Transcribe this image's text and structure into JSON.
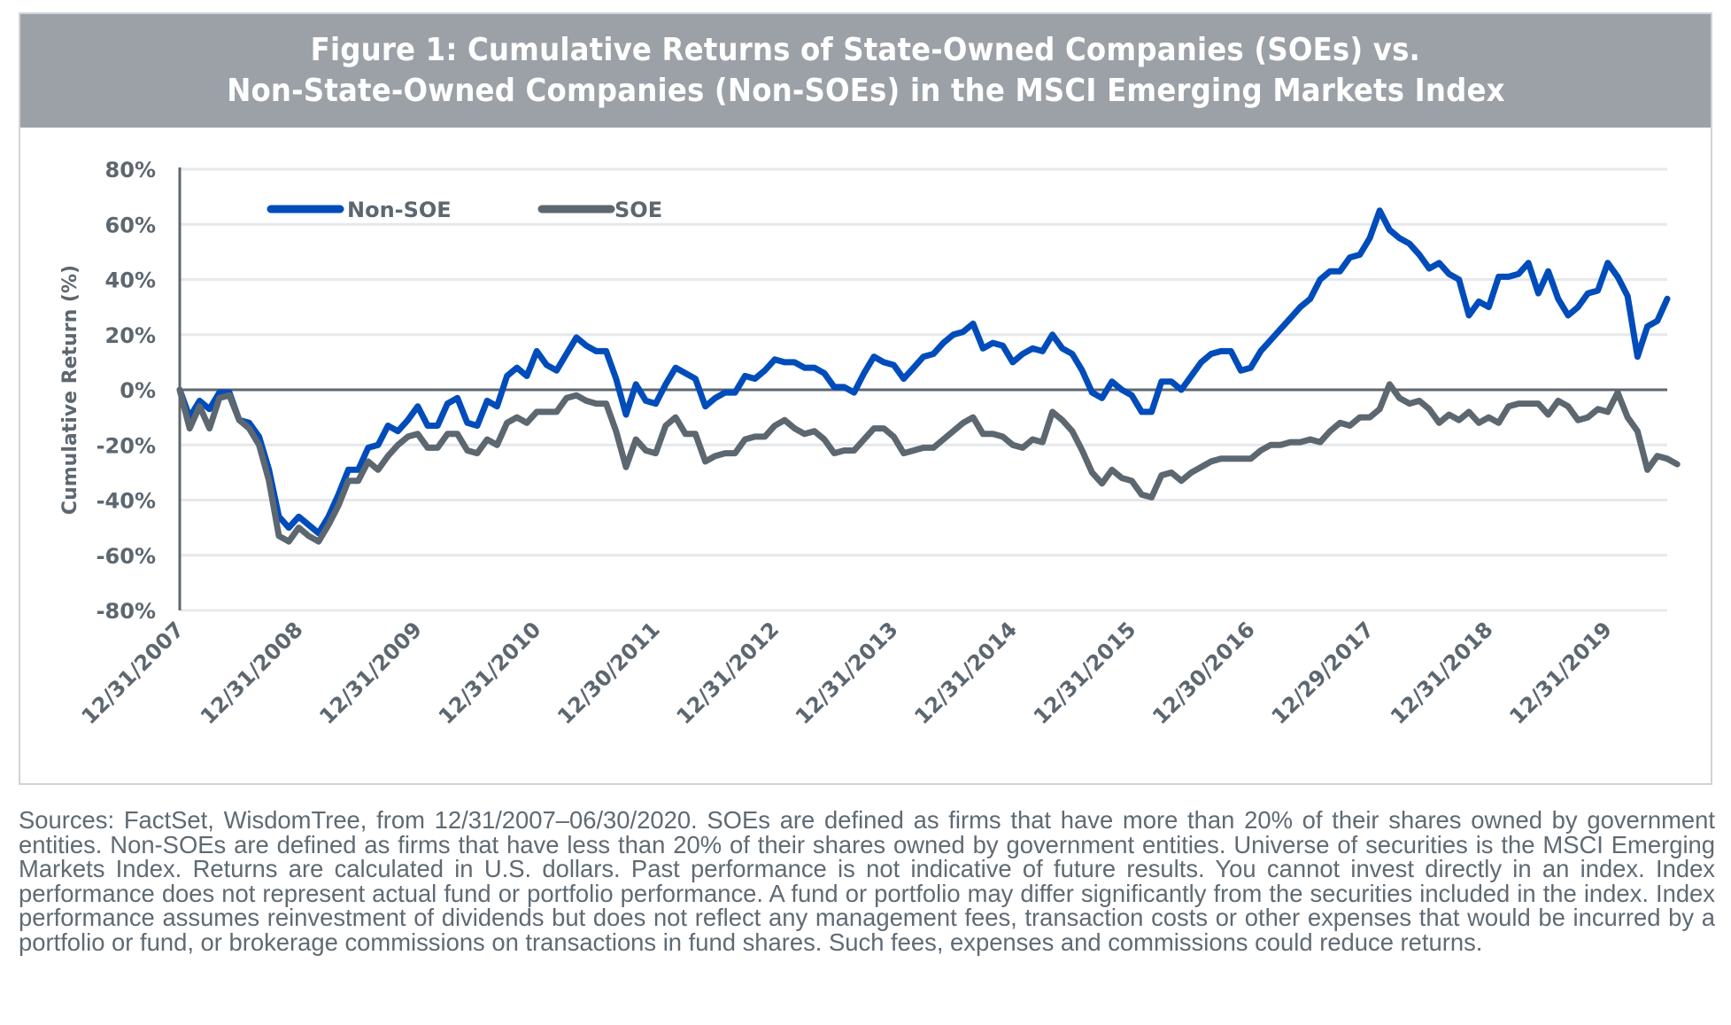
{
  "title": {
    "line1": "Figure 1: Cumulative Returns of State-Owned Companies (SOEs) vs.",
    "line2": "Non-State-Owned Companies (Non-SOEs) in the MSCI Emerging Markets Index"
  },
  "footnote": "Sources: FactSet, WisdomTree, from 12/31/2007–06/30/2020. SOEs are defined as firms that have more than 20% of their shares owned by government entities. Non-SOEs are defined as firms that have less than 20% of their shares owned by government entities. Universe of securities is the MSCI Emerging Markets Index. Returns are calculated in U.S. dollars. Past performance is not indicative of future results. You cannot invest directly in an index. Index performance does not represent actual fund or portfolio performance. A fund or portfolio may differ significantly from the securities included in the index. Index performance assumes reinvestment of dividends but does not reflect any management fees, transaction costs or other expenses that would be incurred by a portfolio or fund, or brokerage commissions on transactions in fund shares. Such fees, expenses and commissions could reduce returns.",
  "colors": {
    "non_soe": "#004cbb",
    "soe": "#5c6770",
    "title_band": "#9ba1a7",
    "grid": "#e6e8eb",
    "axis": "#5d6770"
  },
  "chart_data": {
    "type": "line",
    "title": "Figure 1: Cumulative Returns of State-Owned Companies (SOEs) vs. Non-State-Owned Companies (Non-SOEs) in the MSCI Emerging Markets Index",
    "xlabel": "",
    "ylabel": "Cumulative Return (%)",
    "ylim": [
      -80,
      80
    ],
    "yticks": [
      80,
      60,
      40,
      20,
      0,
      -20,
      -40,
      -60,
      -80
    ],
    "ytick_labels": [
      "80%",
      "60%",
      "40%",
      "20%",
      "0%",
      "-20%",
      "-40%",
      "-60%",
      "-80%"
    ],
    "x_frequency": "monthly",
    "x_start": "12/31/2007",
    "x_end": "06/30/2020",
    "xtick_labels": [
      "12/31/2007",
      "12/31/2008",
      "12/31/2009",
      "12/31/2010",
      "12/30/2011",
      "12/31/2012",
      "12/31/2013",
      "12/31/2014",
      "12/31/2015",
      "12/30/2016",
      "12/29/2017",
      "12/31/2018",
      "12/31/2019"
    ],
    "xtick_every_n_points": 12,
    "grid": true,
    "legend_position": "top-left",
    "series": [
      {
        "name": "Non-SOE",
        "color": "#004cbb",
        "values": [
          0,
          -10,
          -4,
          -7,
          -1,
          -1,
          -11,
          -12,
          -17,
          -29,
          -46,
          -50,
          -46,
          -49,
          -52,
          -46,
          -38,
          -29,
          -29,
          -21,
          -20,
          -13,
          -15,
          -11,
          -6,
          -13,
          -13,
          -5,
          -3,
          -12,
          -13,
          -4,
          -6,
          5,
          8,
          5,
          14,
          9,
          7,
          13,
          19,
          16,
          14,
          14,
          4,
          -9,
          2,
          -4,
          -5,
          2,
          8,
          6,
          4,
          -6,
          -3,
          -1,
          -1,
          5,
          4,
          7,
          11,
          10,
          10,
          8,
          8,
          6,
          1,
          1,
          -1,
          6,
          12,
          10,
          9,
          4,
          8,
          12,
          13,
          17,
          20,
          21,
          24,
          15,
          17,
          16,
          10,
          13,
          15,
          14,
          20,
          15,
          13,
          7,
          -1,
          -3,
          3,
          0,
          -2,
          -8,
          -8,
          3,
          3,
          0,
          5,
          10,
          13,
          14,
          14,
          7,
          8,
          14,
          18,
          22,
          26,
          30,
          33,
          40,
          43,
          43,
          48,
          49,
          55,
          65,
          58,
          55,
          53,
          49,
          44,
          46,
          42,
          40,
          27,
          32,
          30,
          41,
          41,
          42,
          46,
          35,
          43,
          33,
          27,
          30,
          35,
          36,
          46,
          41,
          34,
          12,
          23,
          25,
          33
        ]
      },
      {
        "name": "SOE",
        "color": "#5c6770",
        "values": [
          0,
          -14,
          -6,
          -14,
          -3,
          -2,
          -11,
          -14,
          -20,
          -33,
          -53,
          -55,
          -50,
          -53,
          -55,
          -49,
          -42,
          -33,
          -33,
          -26,
          -29,
          -24,
          -20,
          -17,
          -16,
          -21,
          -21,
          -16,
          -16,
          -22,
          -23,
          -18,
          -20,
          -12,
          -10,
          -12,
          -8,
          -8,
          -8,
          -3,
          -2,
          -4,
          -5,
          -5,
          -15,
          -28,
          -18,
          -22,
          -23,
          -13,
          -10,
          -16,
          -16,
          -26,
          -24,
          -23,
          -23,
          -18,
          -17,
          -17,
          -13,
          -11,
          -14,
          -16,
          -15,
          -18,
          -23,
          -22,
          -22,
          -18,
          -14,
          -14,
          -17,
          -23,
          -22,
          -21,
          -21,
          -18,
          -15,
          -12,
          -10,
          -16,
          -16,
          -17,
          -20,
          -21,
          -18,
          -19,
          -8,
          -11,
          -15,
          -22,
          -30,
          -34,
          -29,
          -32,
          -33,
          -38,
          -39,
          -31,
          -30,
          -33,
          -30,
          -28,
          -26,
          -25,
          -25,
          -25,
          -25,
          -22,
          -20,
          -20,
          -19,
          -19,
          -18,
          -19,
          -15,
          -12,
          -13,
          -10,
          -10,
          -7,
          2,
          -3,
          -5,
          -4,
          -7,
          -12,
          -9,
          -11,
          -8,
          -12,
          -10,
          -12,
          -6,
          -5,
          -5,
          -5,
          -9,
          -4,
          -6,
          -11,
          -10,
          -7,
          -8,
          -1,
          -10,
          -15,
          -29,
          -24,
          -25,
          -27
        ]
      }
    ]
  }
}
